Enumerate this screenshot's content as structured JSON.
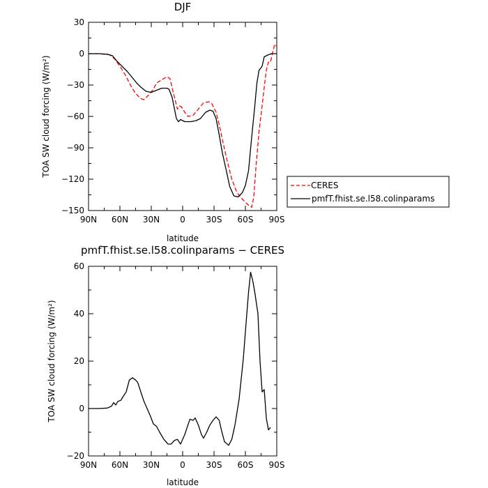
{
  "chart_data": [
    {
      "type": "line",
      "title": "DJF",
      "xlabel": "latitude",
      "ylabel": "TOA SW cloud forcing (W/m²)",
      "xlim": [
        90,
        -90
      ],
      "ylim": [
        -150,
        30
      ],
      "xticks": [
        90,
        60,
        30,
        0,
        -30,
        -60,
        -90
      ],
      "xtick_labels": [
        "90N",
        "60N",
        "30N",
        "0",
        "30S",
        "60S",
        "90S"
      ],
      "yticks": [
        30,
        0,
        -30,
        -60,
        -90,
        -120,
        -150
      ],
      "ytick_labels": [
        "30",
        "0",
        "−30",
        "−60",
        "−90",
        "−120",
        "−150"
      ],
      "legend_position": "right",
      "series": [
        {
          "name": "CERES",
          "color": "#ff0000",
          "dashed": true,
          "points": [
            [
              90,
              0
            ],
            [
              80,
              0
            ],
            [
              70,
              -1
            ],
            [
              65,
              -5
            ],
            [
              60,
              -12
            ],
            [
              55,
              -20
            ],
            [
              50,
              -30
            ],
            [
              45,
              -38
            ],
            [
              40,
              -43
            ],
            [
              37,
              -44
            ],
            [
              33,
              -40
            ],
            [
              28,
              -34
            ],
            [
              25,
              -28
            ],
            [
              20,
              -25
            ],
            [
              15,
              -22
            ],
            [
              12,
              -24
            ],
            [
              10,
              -33
            ],
            [
              7,
              -45
            ],
            [
              5,
              -53
            ],
            [
              3,
              -50
            ],
            [
              1,
              -51
            ],
            [
              -2,
              -56
            ],
            [
              -5,
              -60
            ],
            [
              -10,
              -59
            ],
            [
              -15,
              -53
            ],
            [
              -20,
              -47
            ],
            [
              -25,
              -46
            ],
            [
              -28,
              -48
            ],
            [
              -32,
              -56
            ],
            [
              -35,
              -68
            ],
            [
              -38,
              -82
            ],
            [
              -42,
              -100
            ],
            [
              -47,
              -120
            ],
            [
              -52,
              -133
            ],
            [
              -57,
              -139
            ],
            [
              -62,
              -144
            ],
            [
              -66,
              -147
            ],
            [
              -68,
              -137
            ],
            [
              -70,
              -110
            ],
            [
              -73,
              -75
            ],
            [
              -76,
              -50
            ],
            [
              -78,
              -32
            ],
            [
              -80,
              -16
            ],
            [
              -82,
              -8
            ],
            [
              -84,
              -8
            ],
            [
              -86,
              1
            ],
            [
              -88,
              9
            ],
            [
              -90,
              7
            ]
          ]
        },
        {
          "name": "pmfT.fhist.se.l58.colinparams",
          "color": "#000000",
          "dashed": false,
          "points": [
            [
              90,
              0
            ],
            [
              80,
              0
            ],
            [
              72,
              -0.5
            ],
            [
              67,
              -2
            ],
            [
              63,
              -7
            ],
            [
              58,
              -12
            ],
            [
              53,
              -17
            ],
            [
              48,
              -23
            ],
            [
              44,
              -28
            ],
            [
              40,
              -32
            ],
            [
              35,
              -36
            ],
            [
              30,
              -37
            ],
            [
              25,
              -35
            ],
            [
              20,
              -33
            ],
            [
              15,
              -33
            ],
            [
              13,
              -34
            ],
            [
              10,
              -42
            ],
            [
              8,
              -52
            ],
            [
              6,
              -62
            ],
            [
              4,
              -65
            ],
            [
              2,
              -63
            ],
            [
              -2,
              -65
            ],
            [
              -8,
              -65
            ],
            [
              -13,
              -64
            ],
            [
              -17,
              -62
            ],
            [
              -22,
              -56
            ],
            [
              -26,
              -54
            ],
            [
              -29,
              -55
            ],
            [
              -32,
              -62
            ],
            [
              -35,
              -78
            ],
            [
              -38,
              -95
            ],
            [
              -42,
              -113
            ],
            [
              -45,
              -127
            ],
            [
              -49,
              -136
            ],
            [
              -53,
              -137
            ],
            [
              -57,
              -133
            ],
            [
              -60,
              -126
            ],
            [
              -63,
              -112
            ],
            [
              -66,
              -80
            ],
            [
              -69,
              -50
            ],
            [
              -71,
              -28
            ],
            [
              -73,
              -16
            ],
            [
              -76,
              -12
            ],
            [
              -78,
              -3
            ],
            [
              -82,
              -1
            ],
            [
              -85,
              0
            ],
            [
              -90,
              0
            ]
          ]
        }
      ]
    },
    {
      "type": "line",
      "title": "pmfT.fhist.se.l58.colinparams − CERES",
      "xlabel": "latitude",
      "ylabel": "TOA SW cloud forcing (W/m²)",
      "xlim": [
        90,
        -90
      ],
      "ylim": [
        -20,
        60
      ],
      "xticks": [
        90,
        60,
        30,
        0,
        -30,
        -60,
        -90
      ],
      "xtick_labels": [
        "90N",
        "60N",
        "30N",
        "0",
        "30S",
        "60S",
        "90S"
      ],
      "yticks": [
        60,
        40,
        20,
        0,
        -20
      ],
      "ytick_labels": [
        "60",
        "40",
        "20",
        "0",
        "−20"
      ],
      "series": [
        {
          "color": "#000000",
          "dashed": false,
          "points": [
            [
              90,
              0
            ],
            [
              80,
              0
            ],
            [
              72,
              0.2
            ],
            [
              68,
              1
            ],
            [
              66,
              2.5
            ],
            [
              64,
              1.5
            ],
            [
              62,
              3
            ],
            [
              59,
              3.5
            ],
            [
              57,
              5
            ],
            [
              54,
              7
            ],
            [
              51,
              12
            ],
            [
              48,
              13
            ],
            [
              45,
              12
            ],
            [
              43,
              11
            ],
            [
              40,
              7
            ],
            [
              37,
              3
            ],
            [
              34,
              0
            ],
            [
              31,
              -3
            ],
            [
              28,
              -6.5
            ],
            [
              25,
              -7.5
            ],
            [
              22,
              -10
            ],
            [
              18,
              -13
            ],
            [
              14,
              -15
            ],
            [
              11,
              -15
            ],
            [
              8,
              -13.5
            ],
            [
              5,
              -13
            ],
            [
              2,
              -15
            ],
            [
              -2,
              -11
            ],
            [
              -5,
              -7
            ],
            [
              -7,
              -4.5
            ],
            [
              -10,
              -5
            ],
            [
              -12,
              -4
            ],
            [
              -15,
              -7
            ],
            [
              -18,
              -11
            ],
            [
              -20,
              -12.5
            ],
            [
              -23,
              -10
            ],
            [
              -26,
              -7
            ],
            [
              -29,
              -5
            ],
            [
              -32,
              -3.5
            ],
            [
              -35,
              -5
            ],
            [
              -37,
              -9
            ],
            [
              -40,
              -14
            ],
            [
              -44,
              -15.5
            ],
            [
              -47,
              -13
            ],
            [
              -50,
              -7
            ],
            [
              -54,
              4
            ],
            [
              -58,
              21
            ],
            [
              -61,
              38
            ],
            [
              -63,
              49
            ],
            [
              -65,
              57.5
            ],
            [
              -67,
              54
            ],
            [
              -69,
              49
            ],
            [
              -72,
              40
            ],
            [
              -74,
              20
            ],
            [
              -76,
              7
            ],
            [
              -78,
              8
            ],
            [
              -80,
              -4
            ],
            [
              -82,
              -9
            ],
            [
              -84,
              -8
            ]
          ]
        }
      ]
    }
  ]
}
